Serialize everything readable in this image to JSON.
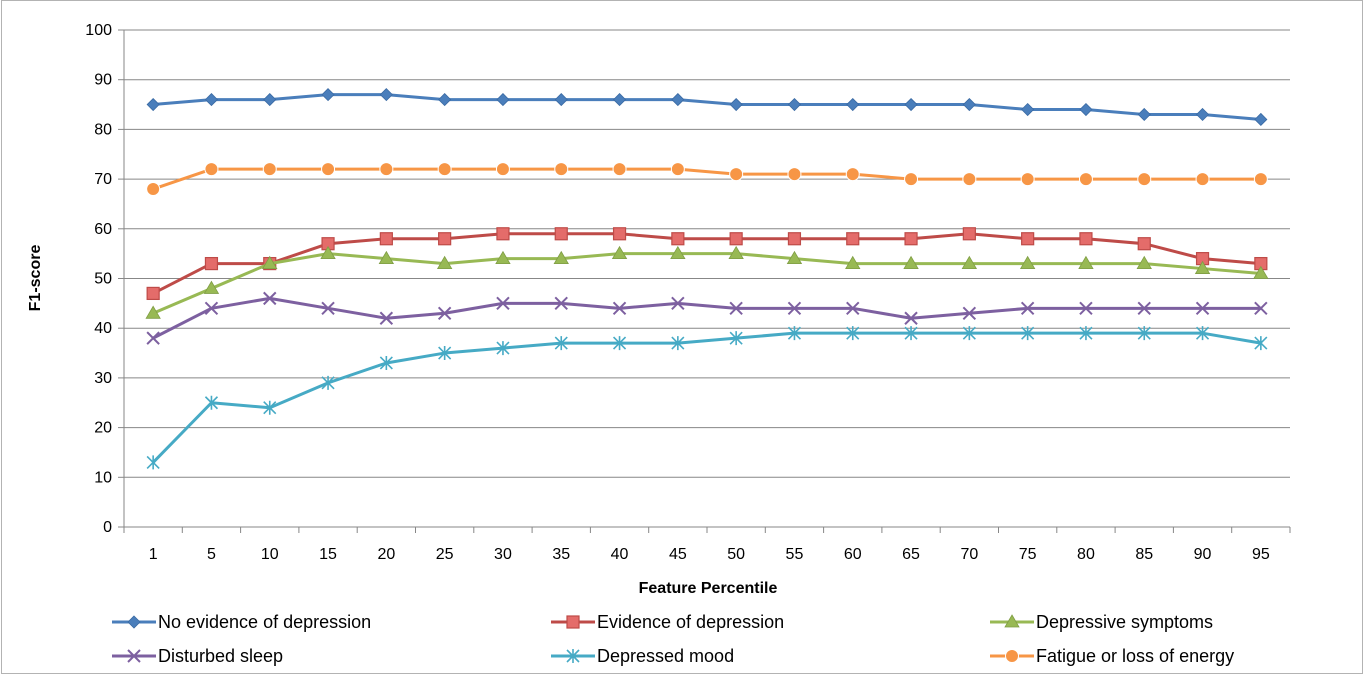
{
  "chart_data": {
    "type": "line",
    "title": "",
    "xlabel": "Feature Percentile",
    "ylabel": "F1-score",
    "ylim": [
      0,
      100
    ],
    "yticks": [
      0,
      10,
      20,
      30,
      40,
      50,
      60,
      70,
      80,
      90,
      100
    ],
    "grid": true,
    "legend_position": "bottom",
    "categories": [
      "1",
      "5",
      "10",
      "15",
      "20",
      "25",
      "30",
      "35",
      "40",
      "45",
      "50",
      "55",
      "60",
      "65",
      "70",
      "75",
      "80",
      "85",
      "90",
      "95"
    ],
    "series": [
      {
        "name": "No evidence of depression",
        "color": "#4a7ebb",
        "marker": "diamond",
        "values": [
          85,
          86,
          86,
          87,
          87,
          86,
          86,
          86,
          86,
          86,
          85,
          85,
          85,
          85,
          85,
          84,
          84,
          83,
          83,
          82
        ]
      },
      {
        "name": "Evidence of depression",
        "color": "#be4b48",
        "marker": "square",
        "values": [
          47,
          53,
          53,
          57,
          58,
          58,
          59,
          59,
          59,
          58,
          58,
          58,
          58,
          58,
          59,
          58,
          58,
          57,
          54,
          53
        ]
      },
      {
        "name": "Depressive symptoms",
        "color": "#98b954",
        "marker": "triangle",
        "values": [
          43,
          48,
          53,
          55,
          54,
          53,
          54,
          54,
          55,
          55,
          55,
          54,
          53,
          53,
          53,
          53,
          53,
          53,
          52,
          51
        ]
      },
      {
        "name": "Disturbed sleep",
        "color": "#7d60a0",
        "marker": "x",
        "values": [
          38,
          44,
          46,
          44,
          42,
          43,
          45,
          45,
          44,
          45,
          44,
          44,
          44,
          42,
          43,
          44,
          44,
          44,
          44,
          44
        ]
      },
      {
        "name": "Depressed mood",
        "color": "#46aac5",
        "marker": "star",
        "values": [
          13,
          25,
          24,
          29,
          33,
          35,
          36,
          37,
          37,
          37,
          38,
          39,
          39,
          39,
          39,
          39,
          39,
          39,
          39,
          37
        ]
      },
      {
        "name": "Fatigue or loss of energy",
        "color": "#f79646",
        "marker": "circle",
        "values": [
          68,
          72,
          72,
          72,
          72,
          72,
          72,
          72,
          72,
          72,
          71,
          71,
          71,
          70,
          70,
          70,
          70,
          70,
          70,
          70
        ]
      }
    ]
  }
}
